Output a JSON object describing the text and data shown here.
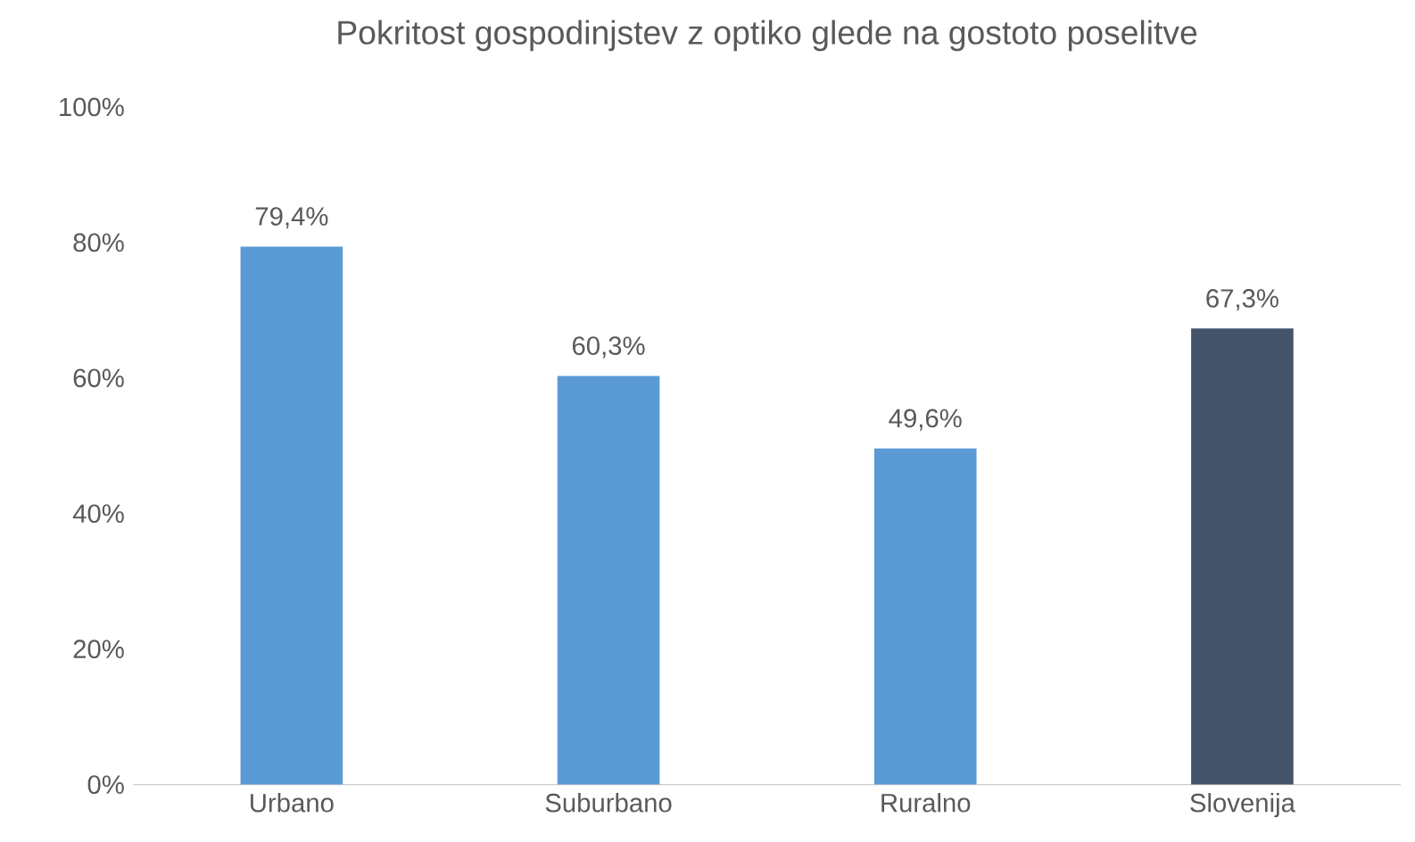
{
  "chart_data": {
    "type": "bar",
    "title": "Pokritost gospodinjstev z optiko glede na gostoto poselitve",
    "categories": [
      "Urbano",
      "Suburbano",
      "Ruralno",
      "Slovenija"
    ],
    "values": [
      79.4,
      60.3,
      49.6,
      67.3
    ],
    "value_labels": [
      "79,4%",
      "60,3%",
      "49,6%",
      "67,3%"
    ],
    "colors": [
      "#5b9bd5",
      "#5b9bd5",
      "#5b9bd5",
      "#44546a"
    ],
    "ylim": [
      0,
      100
    ],
    "yticks": [
      {
        "value": 0,
        "label": "0%"
      },
      {
        "value": 20,
        "label": "20%"
      },
      {
        "value": 40,
        "label": "40%"
      },
      {
        "value": 60,
        "label": "60%"
      },
      {
        "value": 80,
        "label": "80%"
      },
      {
        "value": 100,
        "label": "100%"
      }
    ]
  }
}
